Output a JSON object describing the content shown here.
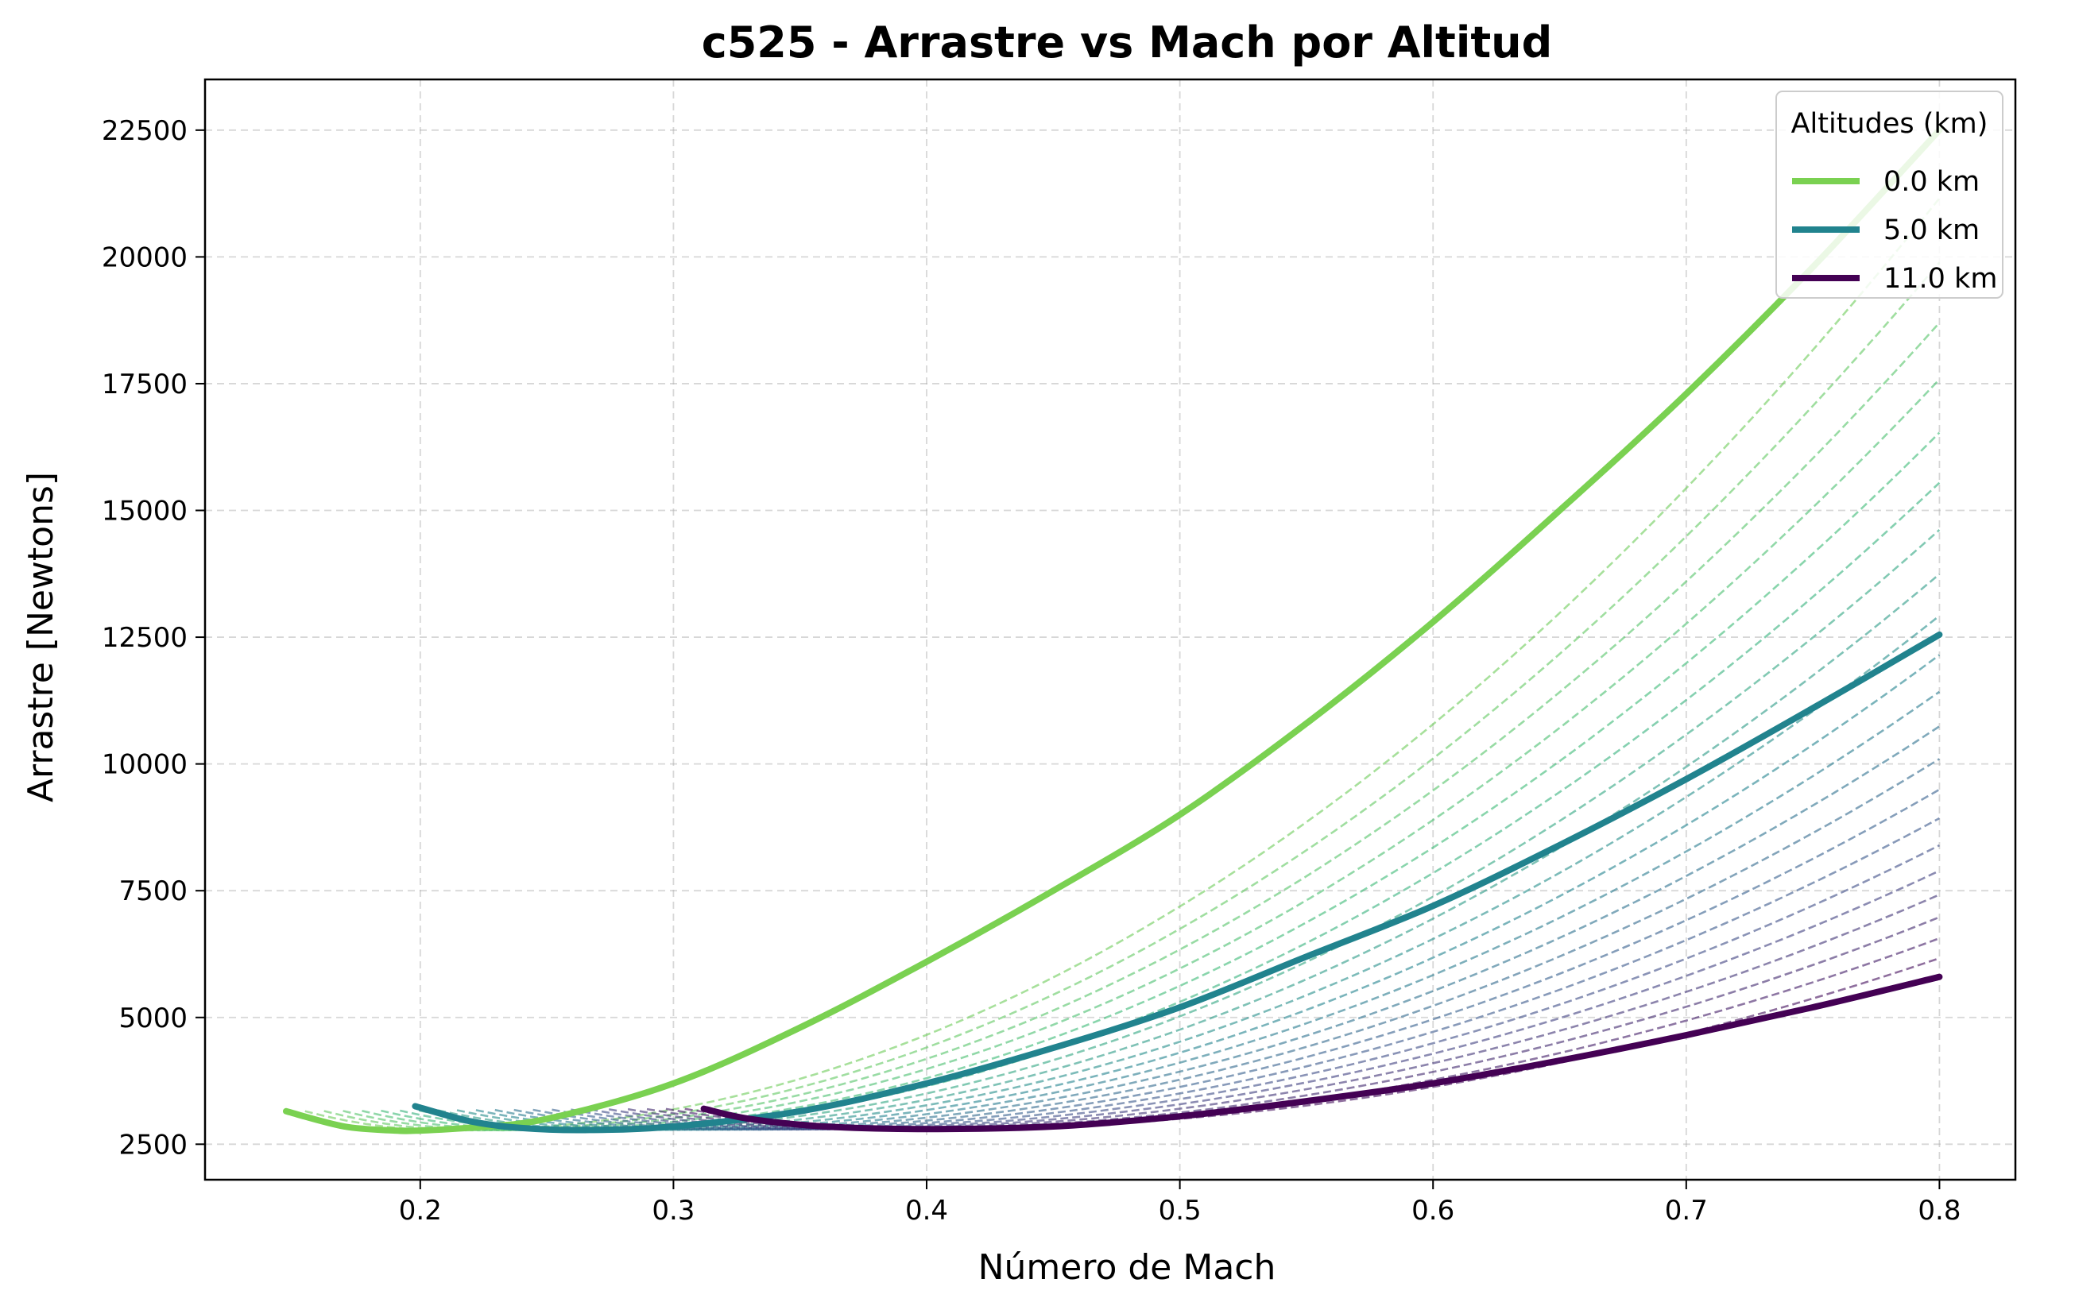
{
  "chart_data": {
    "type": "line",
    "title": "c525 - Arrastre vs Mach por Altitud",
    "xlabel": "Número de Mach",
    "ylabel": "Arrastre [Newtons]",
    "xlim": [
      0.115,
      0.83
    ],
    "ylim": [
      1800,
      23500
    ],
    "x_ticks": [
      0.2,
      0.3,
      0.4,
      0.5,
      0.6,
      0.7,
      0.8
    ],
    "x_tick_labels": [
      "0.2",
      "0.3",
      "0.4",
      "0.5",
      "0.6",
      "0.7",
      "0.8"
    ],
    "y_ticks": [
      2500,
      5000,
      7500,
      10000,
      12500,
      15000,
      17500,
      20000,
      22500
    ],
    "y_tick_labels": [
      "2500",
      "5000",
      "7500",
      "10000",
      "12500",
      "15000",
      "17500",
      "20000",
      "22500"
    ],
    "grid": true,
    "legend": {
      "title": "Altitudes (km)",
      "placement": "top-right"
    },
    "series": [
      {
        "name": "0.0 km",
        "color": "#7ad151",
        "x": [
          0.147,
          0.17,
          0.19,
          0.2,
          0.22,
          0.25,
          0.3,
          0.35,
          0.4,
          0.45,
          0.5,
          0.55,
          0.6,
          0.65,
          0.7,
          0.75,
          0.8
        ],
        "y": [
          3150,
          2850,
          2770,
          2770,
          2830,
          3000,
          3700,
          4800,
          6100,
          7500,
          9000,
          10800,
          12800,
          15000,
          17300,
          19800,
          22500
        ]
      },
      {
        "name": "5.0 km",
        "color": "#21838e",
        "x": [
          0.198,
          0.22,
          0.24,
          0.265,
          0.3,
          0.35,
          0.4,
          0.45,
          0.5,
          0.55,
          0.6,
          0.65,
          0.7,
          0.75,
          0.8
        ],
        "y": [
          3250,
          2950,
          2820,
          2780,
          2850,
          3150,
          3700,
          4400,
          5200,
          6200,
          7200,
          8400,
          9700,
          11100,
          12550
        ]
      },
      {
        "name": "11.0 km",
        "color": "#440154",
        "x": [
          0.312,
          0.33,
          0.36,
          0.4,
          0.45,
          0.5,
          0.55,
          0.6,
          0.65,
          0.7,
          0.75,
          0.8
        ],
        "y": [
          3200,
          3000,
          2850,
          2800,
          2850,
          3050,
          3350,
          3700,
          4150,
          4650,
          5200,
          5800
        ]
      }
    ],
    "intermediate_series": {
      "style": "dashed",
      "count": 22,
      "x_start_range": [
        0.147,
        0.312
      ],
      "y_start_range": [
        3150,
        3200
      ],
      "y_min_range": [
        2770,
        2800
      ],
      "y_end_range": [
        22500,
        5800
      ],
      "x_end": 0.8
    }
  }
}
